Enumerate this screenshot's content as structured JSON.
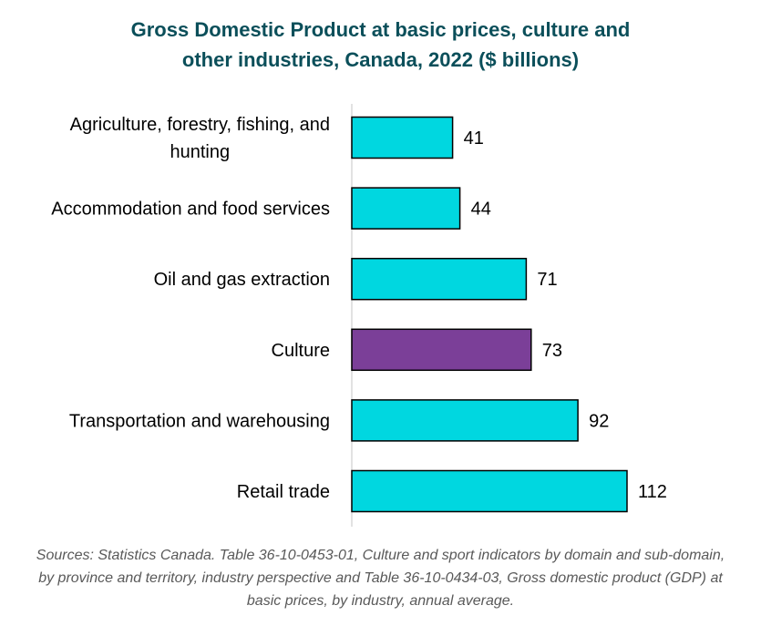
{
  "chart_data": {
    "type": "bar",
    "orientation": "horizontal",
    "title": "Gross Domestic Product at basic prices, culture and\nother industries, Canada, 2022 ($ billions)",
    "categories": [
      "Agriculture, forestry, fishing, and hunting",
      "Accommodation and food services",
      "Oil and gas extraction",
      "Culture",
      "Transportation and warehousing",
      "Retail trade"
    ],
    "values": [
      41,
      44,
      71,
      73,
      92,
      112
    ],
    "colors": [
      "#00d7e0",
      "#00d7e0",
      "#00d7e0",
      "#7b3f98",
      "#00d7e0",
      "#00d7e0"
    ],
    "data_labels": true,
    "xlim": [
      0,
      112
    ],
    "grid": false,
    "legend": "none"
  },
  "source_note": "Sources: Statistics Canada. Table 36-10-0453-01, Culture and sport indicators by domain and sub-domain, by province and territory, industry perspective and Table 36-10-0434-03, Gross domestic product (GDP) at basic prices, by industry, annual average."
}
